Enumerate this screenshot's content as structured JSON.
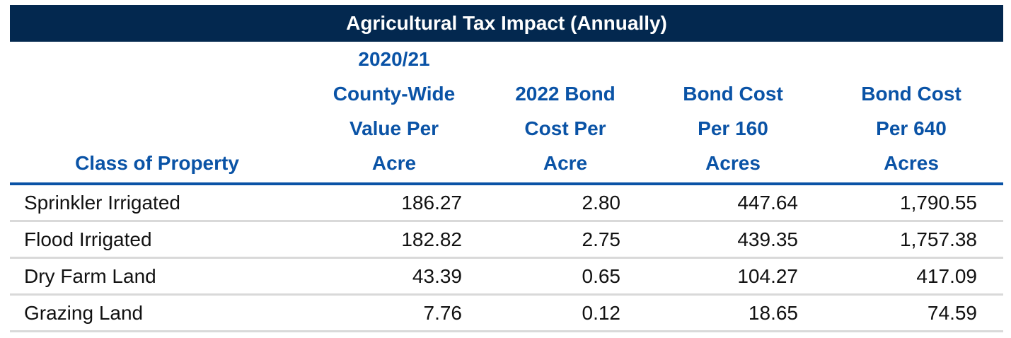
{
  "table": {
    "title": "Agricultural Tax Impact (Annually)",
    "columns": [
      {
        "lines": [
          "Class of Property"
        ]
      },
      {
        "lines": [
          "2020/21",
          "County-Wide",
          "Value Per",
          "Acre"
        ]
      },
      {
        "lines": [
          "2022 Bond",
          "Cost Per",
          "Acre"
        ]
      },
      {
        "lines": [
          "Bond Cost",
          "Per 160",
          "Acres"
        ]
      },
      {
        "lines": [
          "Bond Cost",
          "Per 640",
          "Acres"
        ]
      }
    ],
    "rows": [
      [
        "Sprinkler Irrigated",
        "186.27",
        "2.80",
        "447.64",
        "1,790.55"
      ],
      [
        "Flood Irrigated",
        "182.82",
        "2.75",
        "439.35",
        "1,757.38"
      ],
      [
        "Dry Farm Land",
        "43.39",
        "0.65",
        "104.27",
        "417.09"
      ],
      [
        "Grazing Land",
        "7.76",
        "0.12",
        "18.65",
        "74.59"
      ]
    ],
    "colors": {
      "title_background": "#03284f",
      "title_text": "#ffffff",
      "header_text": "#0a53a6",
      "header_rule": "#0a53a6",
      "row_rule": "#d9d9d9"
    }
  }
}
